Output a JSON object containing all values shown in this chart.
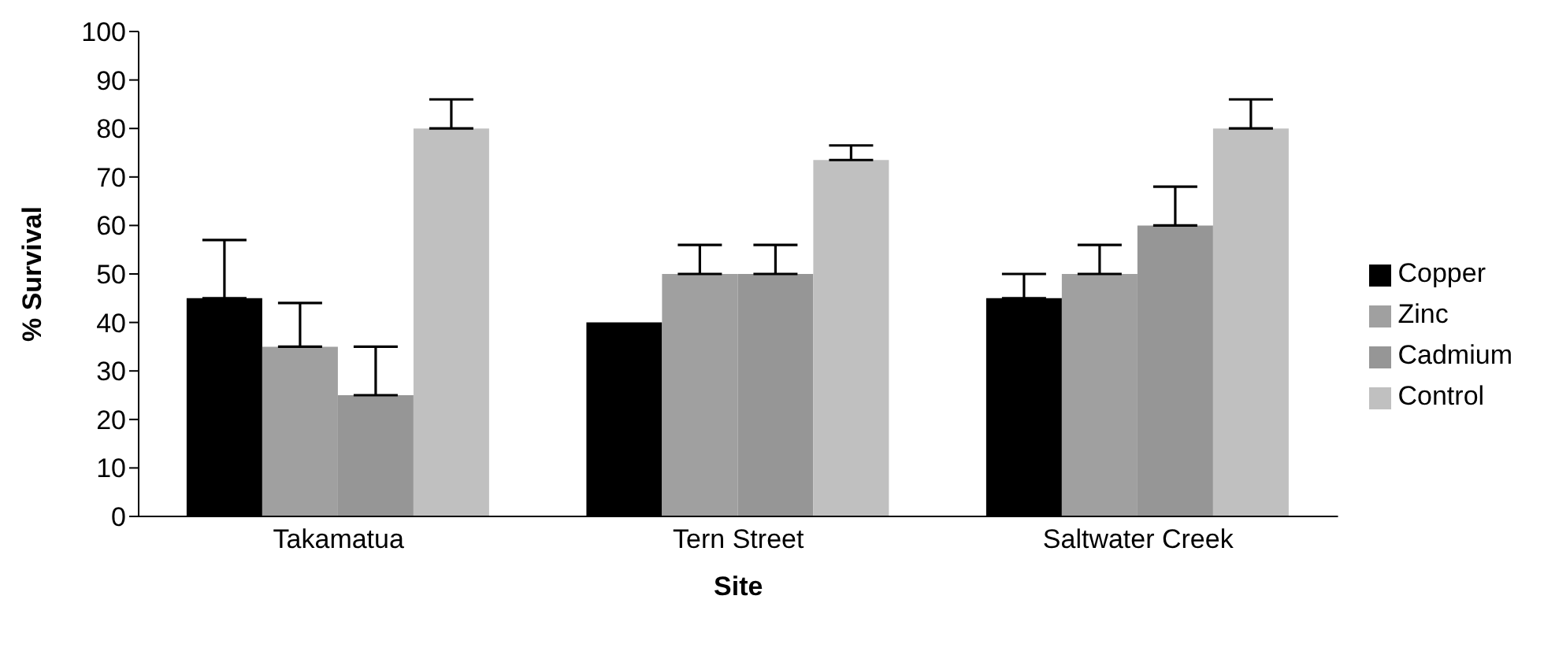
{
  "chart_data": {
    "type": "bar",
    "xlabel": "Site",
    "ylabel": "% Survival",
    "categories": [
      "Takamatua",
      "Tern Street",
      "Saltwater Creek"
    ],
    "series": [
      {
        "name": "Copper",
        "color": "#000000",
        "values": [
          45,
          40,
          45
        ],
        "errors": [
          [
            45,
            57
          ],
          null,
          [
            45,
            50
          ]
        ]
      },
      {
        "name": "Zinc",
        "color": "#a0a0a0",
        "values": [
          35,
          50,
          50
        ],
        "errors": [
          [
            35,
            44
          ],
          [
            50,
            56
          ],
          [
            50,
            56
          ]
        ]
      },
      {
        "name": "Cadmium",
        "color": "#969696",
        "values": [
          25,
          50,
          60
        ],
        "errors": [
          [
            25,
            35
          ],
          [
            50,
            56
          ],
          [
            60,
            68
          ]
        ]
      },
      {
        "name": "Control",
        "color": "#c0c0c0",
        "values": [
          80,
          73.5,
          80
        ],
        "errors": [
          [
            80,
            86
          ],
          [
            73.5,
            76.5
          ],
          [
            80,
            86
          ]
        ]
      }
    ],
    "ylim": [
      0,
      100
    ],
    "yticks": [
      0,
      10,
      20,
      30,
      40,
      50,
      60,
      70,
      80,
      90,
      100
    ],
    "grid": false,
    "legend": "right"
  }
}
